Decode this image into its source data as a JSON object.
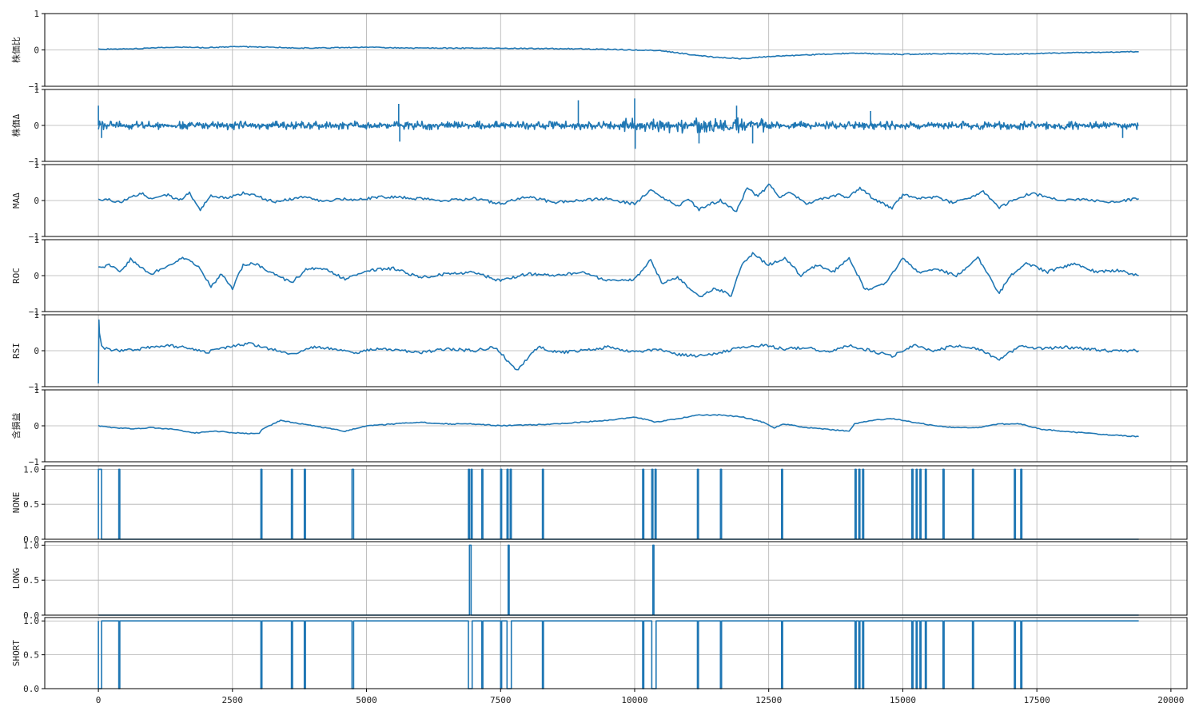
{
  "figure": {
    "series_color": "#1f77b4"
  },
  "chart_data": [
    {
      "type": "line",
      "ylabel": "株価比",
      "ylim": [
        -1,
        1
      ],
      "yticks": [
        -1,
        0,
        1
      ],
      "grid": true,
      "legend": "none",
      "x": [
        0,
        500,
        1000,
        1500,
        2000,
        2500,
        3000,
        4000,
        5000,
        6000,
        7000,
        8000,
        9000,
        10000,
        10500,
        11000,
        11500,
        12000,
        12500,
        13000,
        14000,
        15000,
        16000,
        17000,
        18000,
        19400
      ],
      "values": [
        0.02,
        0.03,
        0.05,
        0.08,
        0.06,
        0.09,
        0.08,
        0.05,
        0.07,
        0.05,
        0.05,
        0.04,
        0.03,
        0.0,
        -0.02,
        -0.12,
        -0.2,
        -0.24,
        -0.18,
        -0.15,
        -0.09,
        -0.12,
        -0.1,
        -0.12,
        -0.08,
        -0.05
      ]
    },
    {
      "type": "line",
      "ylabel": "株価Δ",
      "ylim": [
        -1,
        1
      ],
      "yticks": [
        -1,
        0,
        1
      ],
      "grid": true,
      "legend": "none",
      "noise": {
        "x_end": 19400,
        "amplitude": 0.12,
        "spikes": [
          [
            0,
            0.55
          ],
          [
            60,
            -0.35
          ],
          [
            5600,
            0.6
          ],
          [
            5620,
            -0.45
          ],
          [
            8950,
            0.7
          ],
          [
            10000,
            0.75
          ],
          [
            10010,
            -0.65
          ],
          [
            11200,
            -0.5
          ],
          [
            11900,
            0.55
          ],
          [
            12200,
            -0.5
          ],
          [
            14400,
            0.4
          ],
          [
            19100,
            -0.35
          ]
        ]
      }
    },
    {
      "type": "line",
      "ylabel": "MAΔ",
      "ylim": [
        -1,
        1
      ],
      "yticks": [
        -1,
        0,
        1
      ],
      "grid": true,
      "legend": "none",
      "x": [
        0,
        200,
        400,
        600,
        800,
        1000,
        1300,
        1500,
        1700,
        1900,
        2100,
        2400,
        2700,
        3000,
        3300,
        3600,
        3900,
        4200,
        4500,
        4800,
        5100,
        5500,
        6000,
        6500,
        7000,
        7500,
        8000,
        8500,
        9000,
        9500,
        10000,
        10300,
        10500,
        10800,
        11000,
        11200,
        11400,
        11600,
        11900,
        12100,
        12300,
        12500,
        12700,
        12900,
        13200,
        13500,
        13800,
        14000,
        14200,
        14500,
        14800,
        15000,
        15300,
        15600,
        15900,
        16200,
        16500,
        16800,
        17100,
        17400,
        17700,
        18000,
        18400,
        18800,
        19400
      ],
      "values": [
        0.0,
        0.02,
        -0.05,
        0.1,
        0.2,
        0.05,
        0.15,
        0.0,
        0.2,
        -0.25,
        0.15,
        0.05,
        0.22,
        0.1,
        -0.05,
        0.05,
        0.1,
        -0.05,
        0.05,
        0.0,
        0.08,
        0.1,
        0.05,
        0.0,
        0.05,
        -0.08,
        0.1,
        -0.05,
        0.0,
        0.05,
        -0.1,
        0.3,
        0.1,
        -0.15,
        0.05,
        -0.25,
        -0.1,
        0.0,
        -0.3,
        0.35,
        0.1,
        0.45,
        0.1,
        0.25,
        -0.1,
        0.05,
        0.15,
        0.1,
        0.35,
        0.0,
        -0.2,
        0.15,
        0.05,
        0.1,
        -0.05,
        0.05,
        0.25,
        -0.2,
        0.05,
        0.2,
        0.1,
        0.0,
        0.05,
        -0.05,
        0.05
      ]
    },
    {
      "type": "line",
      "ylabel": "ROC",
      "ylim": [
        -1,
        1
      ],
      "yticks": [
        -1,
        0,
        1
      ],
      "grid": true,
      "legend": "none",
      "x": [
        0,
        200,
        400,
        600,
        800,
        1000,
        1300,
        1600,
        1900,
        2100,
        2300,
        2500,
        2700,
        2900,
        3200,
        3600,
        3900,
        4200,
        4600,
        5000,
        5500,
        6000,
        6500,
        7000,
        7500,
        8000,
        8500,
        9000,
        9500,
        10000,
        10300,
        10500,
        10800,
        11200,
        11500,
        11800,
        12000,
        12200,
        12500,
        12800,
        13100,
        13400,
        13700,
        14000,
        14300,
        14700,
        15000,
        15300,
        15600,
        16000,
        16400,
        16800,
        17000,
        17300,
        17700,
        18200,
        18600,
        19000,
        19400
      ],
      "values": [
        0.2,
        0.3,
        0.1,
        0.45,
        0.2,
        0.05,
        0.3,
        0.5,
        0.2,
        -0.3,
        0.05,
        -0.35,
        0.3,
        0.35,
        0.1,
        -0.2,
        0.2,
        0.2,
        -0.1,
        0.15,
        0.2,
        -0.05,
        0.05,
        0.1,
        -0.15,
        0.05,
        0.0,
        0.1,
        -0.15,
        -0.1,
        0.45,
        -0.2,
        -0.05,
        -0.6,
        -0.35,
        -0.55,
        0.3,
        0.6,
        0.3,
        0.5,
        0.0,
        0.3,
        0.1,
        0.5,
        -0.4,
        -0.2,
        0.5,
        0.1,
        0.2,
        0.0,
        0.5,
        -0.5,
        0.0,
        0.35,
        0.1,
        0.35,
        0.1,
        0.15,
        0.0
      ]
    },
    {
      "type": "line",
      "ylabel": "RSI",
      "ylim": [
        -1,
        1
      ],
      "yticks": [
        -1,
        0,
        1
      ],
      "grid": true,
      "legend": "none",
      "x": [
        0,
        10,
        20,
        60,
        150,
        400,
        800,
        1200,
        1600,
        2000,
        2400,
        2800,
        3200,
        3600,
        4000,
        4400,
        4800,
        5200,
        5600,
        6000,
        6500,
        7000,
        7400,
        7800,
        8200,
        8600,
        9000,
        9500,
        10000,
        10400,
        10800,
        11200,
        11600,
        12000,
        12400,
        12800,
        13200,
        13600,
        14000,
        14400,
        14800,
        15200,
        15600,
        16000,
        16400,
        16800,
        17200,
        17600,
        18000,
        18400,
        18800,
        19400
      ],
      "values": [
        -0.95,
        0.85,
        0.5,
        0.1,
        0.05,
        0.0,
        0.05,
        0.15,
        0.1,
        -0.05,
        0.1,
        0.2,
        0.05,
        -0.1,
        0.1,
        0.05,
        -0.05,
        0.05,
        0.0,
        -0.05,
        0.05,
        0.0,
        0.1,
        -0.55,
        0.1,
        -0.05,
        0.0,
        0.1,
        -0.05,
        0.05,
        -0.1,
        -0.15,
        -0.05,
        0.1,
        0.15,
        0.05,
        0.1,
        -0.05,
        0.15,
        0.0,
        -0.15,
        0.15,
        0.0,
        0.15,
        0.05,
        -0.25,
        0.15,
        0.05,
        0.1,
        0.05,
        0.0,
        0.0
      ]
    },
    {
      "type": "line",
      "ylabel": "含損益",
      "ylim": [
        -1,
        1
      ],
      "yticks": [
        -1,
        0,
        1
      ],
      "grid": true,
      "legend": "none",
      "x": [
        0,
        300,
        600,
        1000,
        1400,
        1800,
        2200,
        2600,
        3000,
        3050,
        3400,
        3800,
        4200,
        4600,
        5000,
        5500,
        6000,
        6500,
        7000,
        7500,
        8000,
        8500,
        9000,
        9500,
        10000,
        10400,
        10800,
        11200,
        11600,
        12000,
        12400,
        12600,
        12800,
        13200,
        13600,
        14000,
        14100,
        14400,
        14800,
        15200,
        15600,
        16000,
        16400,
        16800,
        17200,
        17600,
        18000,
        18400,
        18800,
        19400
      ],
      "values": [
        0.0,
        -0.05,
        -0.08,
        -0.05,
        -0.1,
        -0.2,
        -0.15,
        -0.2,
        -0.22,
        -0.1,
        0.15,
        0.05,
        -0.05,
        -0.15,
        0.0,
        0.05,
        0.1,
        0.05,
        0.05,
        0.0,
        0.02,
        0.05,
        0.1,
        0.15,
        0.25,
        0.1,
        0.2,
        0.3,
        0.3,
        0.25,
        0.1,
        -0.05,
        0.05,
        -0.05,
        -0.1,
        -0.15,
        0.05,
        0.15,
        0.2,
        0.1,
        0.0,
        -0.05,
        -0.05,
        0.05,
        0.05,
        -0.1,
        -0.15,
        -0.2,
        -0.25,
        -0.3
      ]
    },
    {
      "type": "line",
      "ylabel": "NONE",
      "ylim": [
        0,
        1.05
      ],
      "yticks": [
        0.0,
        0.5,
        1.0
      ],
      "grid": true,
      "legend": "none",
      "step": true,
      "pulses": [
        [
          0,
          60
        ],
        [
          380,
          400
        ],
        [
          3030,
          3050
        ],
        [
          3600,
          3620
        ],
        [
          3840,
          3860
        ],
        [
          4730,
          4760
        ],
        [
          6900,
          6920
        ],
        [
          6950,
          6970
        ],
        [
          7150,
          7170
        ],
        [
          7500,
          7520
        ],
        [
          7620,
          7640
        ],
        [
          7680,
          7700
        ],
        [
          8280,
          8300
        ],
        [
          10150,
          10170
        ],
        [
          10320,
          10340
        ],
        [
          10380,
          10400
        ],
        [
          11170,
          11190
        ],
        [
          11600,
          11620
        ],
        [
          12740,
          12760
        ],
        [
          14110,
          14130
        ],
        [
          14180,
          14200
        ],
        [
          14250,
          14270
        ],
        [
          15170,
          15190
        ],
        [
          15250,
          15270
        ],
        [
          15320,
          15340
        ],
        [
          15420,
          15440
        ],
        [
          15750,
          15770
        ],
        [
          16300,
          16320
        ],
        [
          17080,
          17100
        ],
        [
          17200,
          17220
        ]
      ]
    },
    {
      "type": "line",
      "ylabel": "LONG",
      "ylim": [
        0,
        1.05
      ],
      "yticks": [
        0.0,
        0.5,
        1.0
      ],
      "grid": true,
      "legend": "none",
      "step": true,
      "pulses": [
        [
          6920,
          6950
        ],
        [
          7640,
          7660
        ],
        [
          10340,
          10360
        ]
      ]
    },
    {
      "type": "line",
      "ylabel": "SHORT",
      "ylim": [
        0,
        1.05
      ],
      "yticks": [
        0.0,
        0.5,
        1.0
      ],
      "grid": true,
      "legend": "none",
      "step": true,
      "xlim": [
        -1000,
        20300
      ],
      "xticks": [
        0,
        2500,
        5000,
        7500,
        10000,
        12500,
        15000,
        17500,
        20000
      ],
      "gaps": [
        [
          0,
          60
        ],
        [
          380,
          400
        ],
        [
          3030,
          3050
        ],
        [
          3600,
          3620
        ],
        [
          3840,
          3860
        ],
        [
          4730,
          4760
        ],
        [
          6900,
          6970
        ],
        [
          7150,
          7170
        ],
        [
          7500,
          7520
        ],
        [
          7620,
          7700
        ],
        [
          8280,
          8300
        ],
        [
          10150,
          10170
        ],
        [
          10320,
          10400
        ],
        [
          11170,
          11190
        ],
        [
          11600,
          11620
        ],
        [
          12740,
          12760
        ],
        [
          14110,
          14130
        ],
        [
          14180,
          14200
        ],
        [
          14250,
          14270
        ],
        [
          15170,
          15190
        ],
        [
          15250,
          15270
        ],
        [
          15320,
          15340
        ],
        [
          15420,
          15440
        ],
        [
          15750,
          15770
        ],
        [
          16300,
          16320
        ],
        [
          17080,
          17100
        ],
        [
          17200,
          17220
        ]
      ]
    }
  ]
}
